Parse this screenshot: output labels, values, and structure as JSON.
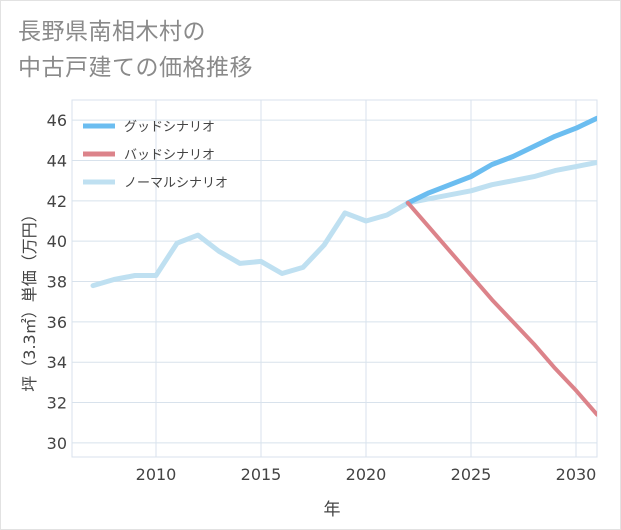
{
  "title_lines": [
    "長野県南相木村の",
    "中古戸建ての価格推移"
  ],
  "colors": {
    "good": "#6bbdf0",
    "bad": "#dc838a",
    "normal": "#bfe0f1",
    "grid": "#d8e2ec",
    "axis_text": "#444444"
  },
  "chart_data": {
    "type": "line",
    "title": "長野県南相木村の中古戸建ての価格推移",
    "xlabel": "年",
    "ylabel": "坪（3.3㎡）単価（万円）",
    "xlim": [
      2006,
      2031
    ],
    "ylim": [
      29.3,
      47.0
    ],
    "xticks": [
      2010,
      2015,
      2020,
      2025,
      2030
    ],
    "yticks": [
      30,
      32,
      34,
      36,
      38,
      40,
      42,
      44,
      46
    ],
    "legend": [
      "グッドシナリオ",
      "バッドシナリオ",
      "ノーマルシナリオ"
    ],
    "series": [
      {
        "name": "ノーマルシナリオ",
        "key": "normal",
        "x": [
          2007,
          2008,
          2009,
          2010,
          2011,
          2012,
          2013,
          2014,
          2015,
          2016,
          2017,
          2018,
          2019,
          2020,
          2021,
          2022,
          2023,
          2024,
          2025,
          2026,
          2027,
          2028,
          2029,
          2030,
          2031
        ],
        "values": [
          37.8,
          38.1,
          38.3,
          38.3,
          39.9,
          40.3,
          39.5,
          38.9,
          39.0,
          38.4,
          38.7,
          39.8,
          41.4,
          41.0,
          41.3,
          41.9,
          42.1,
          42.3,
          42.5,
          42.8,
          43.0,
          43.2,
          43.5,
          43.7,
          43.9
        ]
      },
      {
        "name": "グッドシナリオ",
        "key": "good",
        "x": [
          2022,
          2023,
          2024,
          2025,
          2026,
          2027,
          2028,
          2029,
          2030,
          2031
        ],
        "values": [
          41.9,
          42.4,
          42.8,
          43.2,
          43.8,
          44.2,
          44.7,
          45.2,
          45.6,
          46.1
        ]
      },
      {
        "name": "バッドシナリオ",
        "key": "bad",
        "x": [
          2022,
          2023,
          2024,
          2025,
          2026,
          2027,
          2028,
          2029,
          2030,
          2031
        ],
        "values": [
          41.9,
          40.7,
          39.5,
          38.3,
          37.1,
          36.0,
          34.9,
          33.7,
          32.6,
          31.4
        ]
      }
    ]
  }
}
